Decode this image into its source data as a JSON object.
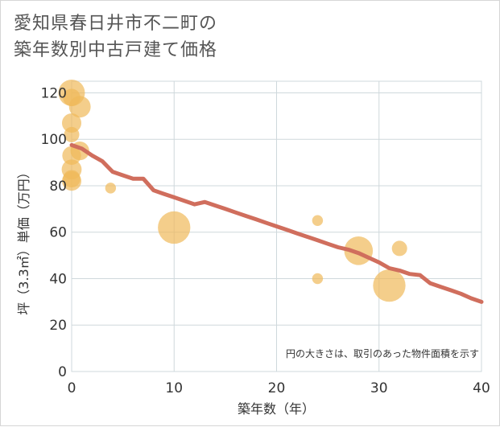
{
  "title_lines": [
    "愛知県春日井市不二町の",
    "築年数別中古戸建て価格"
  ],
  "chart_data": {
    "type": "scatter",
    "title": "愛知県春日井市不二町の築年数別中古戸建て価格",
    "xlabel": "築年数（年）",
    "ylabel": "坪（3.3㎡）単価（万円）",
    "xlim": [
      0,
      40
    ],
    "ylim": [
      0,
      125
    ],
    "xticks": [
      0,
      10,
      20,
      30,
      40
    ],
    "yticks": [
      0,
      20,
      40,
      60,
      80,
      100,
      120
    ],
    "grid": true,
    "bubble_color": "#f0b95a",
    "line_color": "#d06e5d",
    "note": "円の大きさは、取引のあった物件面積を示す",
    "points": [
      {
        "x": 0,
        "y": 120,
        "size": 3.0
      },
      {
        "x": 0,
        "y": 118,
        "size": 1.3
      },
      {
        "x": 0.8,
        "y": 114,
        "size": 2.0
      },
      {
        "x": 0,
        "y": 107,
        "size": 1.6
      },
      {
        "x": 0,
        "y": 102,
        "size": 1.0
      },
      {
        "x": 0.8,
        "y": 95,
        "size": 1.5
      },
      {
        "x": 0,
        "y": 93,
        "size": 1.5
      },
      {
        "x": 0,
        "y": 87,
        "size": 1.7
      },
      {
        "x": 0,
        "y": 83,
        "size": 1.3
      },
      {
        "x": 0,
        "y": 82,
        "size": 1.6
      },
      {
        "x": 3.8,
        "y": 79,
        "size": 0.5
      },
      {
        "x": 10,
        "y": 62,
        "size": 4.5
      },
      {
        "x": 24,
        "y": 65,
        "size": 0.5
      },
      {
        "x": 24,
        "y": 40,
        "size": 0.5
      },
      {
        "x": 28,
        "y": 52,
        "size": 3.5
      },
      {
        "x": 31,
        "y": 37,
        "size": 4.5
      },
      {
        "x": 32,
        "y": 53,
        "size": 1.0
      }
    ],
    "trend": {
      "name": "trend",
      "x": [
        0,
        1,
        2,
        3,
        4,
        5,
        6,
        7,
        8,
        9,
        10,
        11,
        12,
        13,
        14,
        15,
        16,
        17,
        18,
        19,
        20,
        21,
        22,
        23,
        24,
        25,
        26,
        27,
        28,
        29,
        30,
        31,
        32,
        33,
        34,
        35,
        36,
        37,
        38,
        39,
        40
      ],
      "y": [
        97.5,
        96,
        93,
        90.5,
        86,
        84.5,
        83,
        83,
        78,
        76.5,
        75,
        73.5,
        72,
        73,
        71.5,
        70,
        68.5,
        67,
        65.5,
        64,
        62.5,
        61,
        59.5,
        58,
        56.5,
        55,
        53.5,
        52.5,
        51,
        49,
        47,
        44.5,
        43.5,
        42,
        41.5,
        38,
        36.5,
        35,
        33.5,
        31.5,
        30
      ]
    }
  }
}
